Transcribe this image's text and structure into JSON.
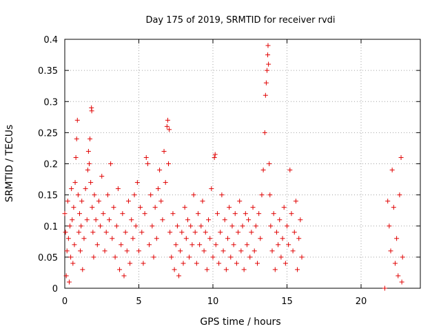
{
  "chart_data": {
    "type": "scatter",
    "title": "Day 175 of 2019, SRMTID for receiver rvdi",
    "xlabel": "GPS time / hours",
    "ylabel": "SRMTID / TECUs",
    "xlim": [
      0,
      24
    ],
    "ylim": [
      0,
      0.4
    ],
    "xticks": [
      0,
      5,
      10,
      15,
      20
    ],
    "yticks": [
      0,
      0.05,
      0.1,
      0.15,
      0.2,
      0.25,
      0.3,
      0.35,
      0.4
    ],
    "xtick_labels": [
      "0",
      "5",
      "10",
      "15",
      "20"
    ],
    "ytick_labels": [
      "0",
      "0.05",
      "0.1",
      "0.15",
      "0.2",
      "0.25",
      "0.3",
      "0.35",
      "0.4"
    ],
    "grid": true,
    "marker": "+",
    "color": "#e00000",
    "series": [
      {
        "points": [
          [
            0.0,
            0.12
          ],
          [
            0.05,
            0.09
          ],
          [
            0.1,
            0.02
          ],
          [
            0.15,
            0.06
          ],
          [
            0.2,
            0.14
          ],
          [
            0.25,
            0.08
          ],
          [
            0.3,
            0.01
          ],
          [
            0.35,
            0.1
          ],
          [
            0.4,
            0.05
          ],
          [
            0.45,
            0.16
          ],
          [
            0.5,
            0.11
          ],
          [
            0.55,
            0.04
          ],
          [
            0.6,
            0.13
          ],
          [
            0.65,
            0.07
          ],
          [
            0.7,
            0.17
          ],
          [
            0.75,
            0.21
          ],
          [
            0.8,
            0.24
          ],
          [
            0.85,
            0.27
          ],
          [
            0.9,
            0.15
          ],
          [
            0.95,
            0.09
          ],
          [
            1.0,
            0.12
          ],
          [
            1.05,
            0.06
          ],
          [
            1.1,
            0.1
          ],
          [
            1.15,
            0.14
          ],
          [
            1.2,
            0.03
          ],
          [
            1.3,
            0.08
          ],
          [
            1.4,
            0.16
          ],
          [
            1.5,
            0.11
          ],
          [
            1.55,
            0.19
          ],
          [
            1.6,
            0.22
          ],
          [
            1.65,
            0.2
          ],
          [
            1.7,
            0.24
          ],
          [
            1.75,
            0.17
          ],
          [
            1.8,
            0.29
          ],
          [
            1.82,
            0.285
          ],
          [
            1.85,
            0.13
          ],
          [
            1.9,
            0.09
          ],
          [
            1.95,
            0.05
          ],
          [
            2.0,
            0.15
          ],
          [
            2.1,
            0.11
          ],
          [
            2.2,
            0.07
          ],
          [
            2.3,
            0.14
          ],
          [
            2.4,
            0.1
          ],
          [
            2.5,
            0.18
          ],
          [
            2.6,
            0.12
          ],
          [
            2.7,
            0.06
          ],
          [
            2.8,
            0.09
          ],
          [
            2.9,
            0.15
          ],
          [
            3.0,
            0.11
          ],
          [
            3.1,
            0.2
          ],
          [
            3.2,
            0.08
          ],
          [
            3.3,
            0.13
          ],
          [
            3.4,
            0.05
          ],
          [
            3.5,
            0.1
          ],
          [
            3.6,
            0.16
          ],
          [
            3.7,
            0.03
          ],
          [
            3.8,
            0.07
          ],
          [
            3.9,
            0.12
          ],
          [
            4.0,
            0.02
          ],
          [
            4.1,
            0.09
          ],
          [
            4.2,
            0.06
          ],
          [
            4.3,
            0.14
          ],
          [
            4.4,
            0.04
          ],
          [
            4.5,
            0.11
          ],
          [
            4.6,
            0.08
          ],
          [
            4.7,
            0.15
          ],
          [
            4.8,
            0.1
          ],
          [
            4.9,
            0.17
          ],
          [
            5.0,
            0.06
          ],
          [
            5.1,
            0.13
          ],
          [
            5.2,
            0.09
          ],
          [
            5.3,
            0.04
          ],
          [
            5.4,
            0.12
          ],
          [
            5.5,
            0.21
          ],
          [
            5.6,
            0.2
          ],
          [
            5.7,
            0.07
          ],
          [
            5.8,
            0.15
          ],
          [
            5.9,
            0.1
          ],
          [
            6.0,
            0.05
          ],
          [
            6.1,
            0.13
          ],
          [
            6.2,
            0.08
          ],
          [
            6.3,
            0.16
          ],
          [
            6.4,
            0.19
          ],
          [
            6.5,
            0.14
          ],
          [
            6.6,
            0.11
          ],
          [
            6.7,
            0.22
          ],
          [
            6.8,
            0.17
          ],
          [
            6.9,
            0.26
          ],
          [
            6.95,
            0.27
          ],
          [
            7.0,
            0.2
          ],
          [
            7.05,
            0.255
          ],
          [
            7.1,
            0.09
          ],
          [
            7.2,
            0.05
          ],
          [
            7.3,
            0.12
          ],
          [
            7.4,
            0.03
          ],
          [
            7.5,
            0.07
          ],
          [
            7.6,
            0.1
          ],
          [
            7.7,
            0.02
          ],
          [
            7.8,
            0.06
          ],
          [
            7.9,
            0.09
          ],
          [
            8.0,
            0.04
          ],
          [
            8.1,
            0.13
          ],
          [
            8.2,
            0.08
          ],
          [
            8.3,
            0.11
          ],
          [
            8.4,
            0.05
          ],
          [
            8.5,
            0.1
          ],
          [
            8.6,
            0.07
          ],
          [
            8.7,
            0.15
          ],
          [
            8.8,
            0.09
          ],
          [
            8.9,
            0.04
          ],
          [
            9.0,
            0.12
          ],
          [
            9.1,
            0.07
          ],
          [
            9.2,
            0.1
          ],
          [
            9.3,
            0.14
          ],
          [
            9.4,
            0.06
          ],
          [
            9.5,
            0.09
          ],
          [
            9.6,
            0.03
          ],
          [
            9.7,
            0.11
          ],
          [
            9.8,
            0.08
          ],
          [
            9.9,
            0.16
          ],
          [
            10.0,
            0.05
          ],
          [
            10.1,
            0.21
          ],
          [
            10.15,
            0.215
          ],
          [
            10.2,
            0.07
          ],
          [
            10.3,
            0.12
          ],
          [
            10.4,
            0.04
          ],
          [
            10.5,
            0.09
          ],
          [
            10.6,
            0.15
          ],
          [
            10.7,
            0.06
          ],
          [
            10.8,
            0.11
          ],
          [
            10.9,
            0.03
          ],
          [
            11.0,
            0.08
          ],
          [
            11.1,
            0.13
          ],
          [
            11.2,
            0.05
          ],
          [
            11.3,
            0.1
          ],
          [
            11.4,
            0.07
          ],
          [
            11.5,
            0.12
          ],
          [
            11.6,
            0.04
          ],
          [
            11.7,
            0.09
          ],
          [
            11.8,
            0.14
          ],
          [
            11.9,
            0.06
          ],
          [
            12.0,
            0.1
          ],
          [
            12.1,
            0.03
          ],
          [
            12.2,
            0.12
          ],
          [
            12.3,
            0.07
          ],
          [
            12.4,
            0.11
          ],
          [
            12.5,
            0.05
          ],
          [
            12.6,
            0.09
          ],
          [
            12.7,
            0.13
          ],
          [
            12.8,
            0.06
          ],
          [
            12.9,
            0.1
          ],
          [
            13.0,
            0.04
          ],
          [
            13.1,
            0.12
          ],
          [
            13.2,
            0.08
          ],
          [
            13.3,
            0.15
          ],
          [
            13.4,
            0.19
          ],
          [
            13.5,
            0.25
          ],
          [
            13.55,
            0.31
          ],
          [
            13.6,
            0.33
          ],
          [
            13.65,
            0.35
          ],
          [
            13.7,
            0.375
          ],
          [
            13.72,
            0.39
          ],
          [
            13.75,
            0.36
          ],
          [
            13.8,
            0.2
          ],
          [
            13.85,
            0.15
          ],
          [
            13.9,
            0.1
          ],
          [
            14.0,
            0.06
          ],
          [
            14.1,
            0.12
          ],
          [
            14.2,
            0.03
          ],
          [
            14.3,
            0.09
          ],
          [
            14.4,
            0.07
          ],
          [
            14.5,
            0.11
          ],
          [
            14.6,
            0.05
          ],
          [
            14.7,
            0.08
          ],
          [
            14.8,
            0.13
          ],
          [
            14.9,
            0.04
          ],
          [
            15.0,
            0.1
          ],
          [
            15.1,
            0.07
          ],
          [
            15.2,
            0.19
          ],
          [
            15.3,
            0.12
          ],
          [
            15.4,
            0.06
          ],
          [
            15.5,
            0.09
          ],
          [
            15.6,
            0.14
          ],
          [
            15.7,
            0.03
          ],
          [
            15.8,
            0.08
          ],
          [
            15.9,
            0.11
          ],
          [
            16.0,
            0.05
          ],
          [
            21.6,
            0.0
          ],
          [
            21.8,
            0.14
          ],
          [
            21.9,
            0.1
          ],
          [
            22.0,
            0.06
          ],
          [
            22.1,
            0.19
          ],
          [
            22.2,
            0.13
          ],
          [
            22.3,
            0.04
          ],
          [
            22.4,
            0.08
          ],
          [
            22.5,
            0.02
          ],
          [
            22.6,
            0.15
          ],
          [
            22.7,
            0.21
          ],
          [
            22.75,
            0.01
          ],
          [
            22.8,
            0.05
          ]
        ]
      }
    ]
  }
}
